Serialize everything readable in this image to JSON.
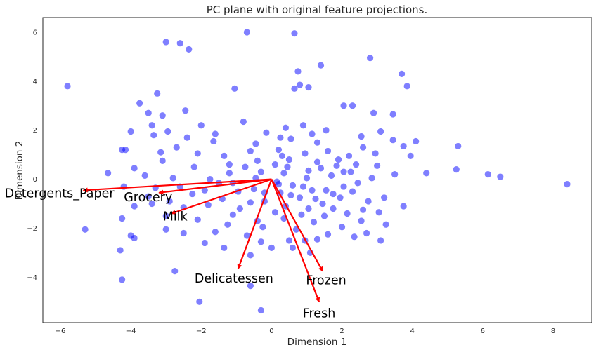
{
  "chart_data": {
    "type": "scatter",
    "title": "PC plane with original feature projections.",
    "xlabel": "Dimension 1",
    "ylabel": "Dimension 2",
    "xlim": [
      -6.5,
      9.1
    ],
    "ylim": [
      -5.85,
      6.6
    ],
    "xticks": [
      -6,
      -4,
      -2,
      0,
      2,
      4,
      6,
      8
    ],
    "yticks": [
      -4,
      -2,
      0,
      2,
      4,
      6
    ],
    "grid": false,
    "point_color": "#0000ff",
    "arrow_color": "#ff0000",
    "series": [
      {
        "points": [
          [
            -5.8,
            3.8
          ],
          [
            -3.0,
            5.6
          ],
          [
            -2.6,
            5.55
          ],
          [
            -2.35,
            5.3
          ],
          [
            -0.7,
            6.0
          ],
          [
            0.65,
            5.95
          ],
          [
            1.4,
            4.65
          ],
          [
            2.8,
            4.95
          ],
          [
            3.7,
            4.3
          ],
          [
            3.85,
            3.8
          ],
          [
            0.75,
            4.4
          ],
          [
            0.8,
            3.85
          ],
          [
            0.65,
            3.7
          ],
          [
            1.05,
            3.75
          ],
          [
            -1.05,
            3.7
          ],
          [
            -3.25,
            3.5
          ],
          [
            -3.75,
            3.1
          ],
          [
            2.05,
            3.0
          ],
          [
            2.3,
            3.0
          ],
          [
            2.9,
            2.7
          ],
          [
            3.45,
            2.65
          ],
          [
            -4.0,
            1.95
          ],
          [
            -3.5,
            2.7
          ],
          [
            -2.45,
            2.8
          ],
          [
            -3.1,
            2.6
          ],
          [
            -3.4,
            2.2
          ],
          [
            -2.0,
            2.2
          ],
          [
            -0.8,
            2.35
          ],
          [
            0.4,
            2.1
          ],
          [
            0.9,
            2.2
          ],
          [
            1.55,
            2.0
          ],
          [
            3.45,
            1.6
          ],
          [
            4.1,
            1.55
          ],
          [
            5.3,
            1.35
          ],
          [
            2.6,
            1.3
          ],
          [
            -4.25,
            1.2
          ],
          [
            -4.15,
            1.2
          ],
          [
            -3.35,
            1.8
          ],
          [
            -2.95,
            1.95
          ],
          [
            -2.4,
            1.7
          ],
          [
            -1.6,
            1.85
          ],
          [
            -0.15,
            1.9
          ],
          [
            0.25,
            1.7
          ],
          [
            1.15,
            1.85
          ],
          [
            3.75,
            1.35
          ],
          [
            -4.65,
            0.25
          ],
          [
            -3.9,
            0.45
          ],
          [
            -3.1,
            0.75
          ],
          [
            -2.2,
            0.5
          ],
          [
            -1.2,
            0.6
          ],
          [
            -0.4,
            0.75
          ],
          [
            0.1,
            0.6
          ],
          [
            0.5,
            0.8
          ],
          [
            1.3,
            0.7
          ],
          [
            1.85,
            0.55
          ],
          [
            2.4,
            0.6
          ],
          [
            3.0,
            0.55
          ],
          [
            4.4,
            0.25
          ],
          [
            5.25,
            0.4
          ],
          [
            6.15,
            0.2
          ],
          [
            6.5,
            0.1
          ],
          [
            8.4,
            -0.2
          ],
          [
            -3.3,
            -0.35
          ],
          [
            -2.6,
            -0.3
          ],
          [
            -1.5,
            -0.15
          ],
          [
            -0.5,
            -0.4
          ],
          [
            0.2,
            -0.2
          ],
          [
            0.9,
            -0.3
          ],
          [
            1.55,
            -0.45
          ],
          [
            2.3,
            -0.5
          ],
          [
            3.2,
            -0.75
          ],
          [
            3.75,
            -1.1
          ],
          [
            -3.9,
            -1.1
          ],
          [
            -3.4,
            -1.0
          ],
          [
            -2.5,
            -1.15
          ],
          [
            -1.8,
            -1.05
          ],
          [
            -0.9,
            -1.2
          ],
          [
            -0.2,
            -0.9
          ],
          [
            0.4,
            -1.1
          ],
          [
            1.05,
            -1.2
          ],
          [
            1.75,
            -1.2
          ],
          [
            2.6,
            -1.25
          ],
          [
            -5.3,
            -2.05
          ],
          [
            -4.25,
            -1.6
          ],
          [
            -3.0,
            -1.5
          ],
          [
            -2.1,
            -1.65
          ],
          [
            -1.25,
            -1.85
          ],
          [
            -0.4,
            -1.7
          ],
          [
            0.35,
            -1.6
          ],
          [
            1.2,
            -1.75
          ],
          [
            2.0,
            -1.95
          ],
          [
            2.7,
            -2.2
          ],
          [
            3.25,
            -1.85
          ],
          [
            -4.0,
            -2.3
          ],
          [
            -3.9,
            -2.4
          ],
          [
            -2.5,
            -2.2
          ],
          [
            -1.6,
            -2.15
          ],
          [
            -0.7,
            -2.3
          ],
          [
            0.5,
            -2.5
          ],
          [
            1.3,
            -2.45
          ],
          [
            2.35,
            -2.35
          ],
          [
            3.1,
            -2.5
          ],
          [
            -4.3,
            -2.9
          ],
          [
            -2.75,
            -3.75
          ],
          [
            -1.35,
            -2.8
          ],
          [
            -0.6,
            -3.1
          ],
          [
            0.0,
            -2.8
          ],
          [
            0.6,
            -2.8
          ],
          [
            1.1,
            -3.0
          ],
          [
            -4.25,
            -4.1
          ],
          [
            -2.05,
            -5.0
          ],
          [
            -0.6,
            -4.35
          ],
          [
            -0.3,
            -5.35
          ],
          [
            -1.9,
            -0.45
          ],
          [
            -1.2,
            0.25
          ],
          [
            -0.3,
            0.3
          ],
          [
            0.35,
            0.25
          ],
          [
            1.05,
            0.35
          ],
          [
            1.7,
            0.15
          ],
          [
            2.25,
            0.3
          ],
          [
            2.85,
            0.05
          ],
          [
            3.5,
            0.2
          ],
          [
            -2.1,
            1.05
          ],
          [
            -1.35,
            0.95
          ],
          [
            -0.6,
            1.15
          ],
          [
            0.2,
            1.2
          ],
          [
            0.95,
            1.05
          ],
          [
            1.6,
            1.15
          ],
          [
            2.2,
            0.95
          ],
          [
            2.95,
            1.05
          ],
          [
            -2.8,
            0.05
          ],
          [
            -1.75,
            0.0
          ],
          [
            -0.95,
            -0.5
          ],
          [
            -0.2,
            -0.55
          ],
          [
            0.55,
            -0.65
          ],
          [
            1.25,
            -0.8
          ],
          [
            1.95,
            -0.75
          ],
          [
            2.75,
            -0.9
          ],
          [
            -2.25,
            -0.6
          ],
          [
            -1.4,
            -0.8
          ],
          [
            -0.6,
            -0.95
          ],
          [
            0.1,
            -1.35
          ],
          [
            0.85,
            -1.45
          ],
          [
            1.5,
            -1.5
          ],
          [
            2.15,
            -1.4
          ],
          [
            -3.5,
            -0.7
          ],
          [
            -2.9,
            -0.9
          ],
          [
            -1.1,
            -1.45
          ],
          [
            -0.25,
            -1.95
          ],
          [
            0.7,
            -2.05
          ],
          [
            1.6,
            -2.25
          ],
          [
            0.25,
            -0.55
          ],
          [
            0.6,
            -0.25
          ],
          [
            1.0,
            0.05
          ],
          [
            1.4,
            0.45
          ],
          [
            1.9,
            0.8
          ],
          [
            -0.75,
            0.5
          ],
          [
            -0.45,
            0.05
          ],
          [
            0.15,
            -0.1
          ],
          [
            0.45,
            0.5
          ],
          [
            0.8,
            -0.75
          ],
          [
            1.15,
            -0.45
          ],
          [
            1.45,
            -1.0
          ],
          [
            2.05,
            -0.3
          ],
          [
            2.45,
            -0.15
          ],
          [
            -3.6,
            0.15
          ],
          [
            -4.2,
            -0.3
          ],
          [
            -3.0,
            -2.05
          ],
          [
            -1.9,
            -2.6
          ],
          [
            2.05,
            0.3
          ],
          [
            1.3,
            1.5
          ],
          [
            0.55,
            1.65
          ],
          [
            -0.45,
            1.45
          ],
          [
            -1.65,
            1.55
          ],
          [
            -2.7,
            1.3
          ],
          [
            -3.15,
            1.1
          ],
          [
            2.55,
            1.75
          ],
          [
            3.1,
            1.95
          ],
          [
            3.95,
            0.95
          ],
          [
            -1.1,
            -0.15
          ],
          [
            0.3,
            0.95
          ],
          [
            1.75,
            -0.6
          ],
          [
            2.55,
            -1.7
          ],
          [
            3.05,
            -1.35
          ],
          [
            0.95,
            -2.5
          ],
          [
            -0.3,
            -2.55
          ]
        ]
      }
    ],
    "projections": [
      {
        "name": "Fresh",
        "dx": 1.35,
        "dy": -5.0
      },
      {
        "name": "Milk",
        "dx": -2.85,
        "dy": -1.4
      },
      {
        "name": "Grocery",
        "dx": -3.2,
        "dy": -0.55
      },
      {
        "name": "Frozen",
        "dx": 1.45,
        "dy": -3.75
      },
      {
        "name": "Detergents_Paper",
        "dx": -5.35,
        "dy": -0.45
      },
      {
        "name": "Delicatessen",
        "dx": -0.95,
        "dy": -3.65
      }
    ]
  }
}
